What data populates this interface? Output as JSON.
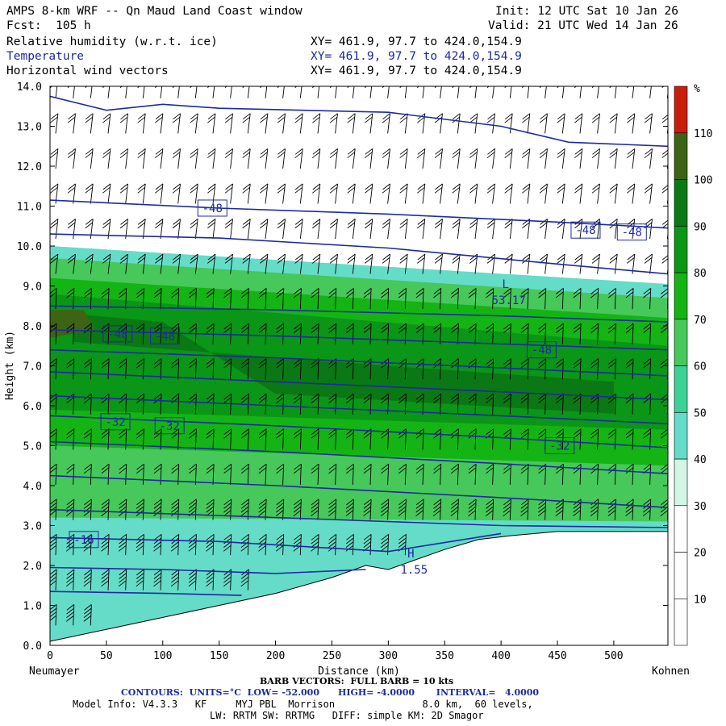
{
  "header": {
    "title": "AMPS 8-km WRF -- Qn Maud Land Coast window",
    "fcst": "Fcst:  105 h",
    "init": "Init: 12 UTC Sat 10 Jan 26",
    "valid": "Valid: 21 UTC Wed 14 Jan 26",
    "fields": [
      {
        "name": "Relative humidity (w.r.t. ice)",
        "xy": "XY= 461.9, 97.7 to 424.0,154.9",
        "color": "#000000"
      },
      {
        "name": "Temperature",
        "xy": "XY= 461.9, 97.7 to 424.0,154.9",
        "color": "#1e2a9e"
      },
      {
        "name": "Horizontal wind vectors",
        "xy": "XY= 461.9, 97.7 to 424.0,154.9",
        "color": "#000000"
      }
    ]
  },
  "axes": {
    "xlabel": "Distance (km)",
    "ylabel": "Height (km)",
    "left_endpoint": "Neumayer",
    "right_endpoint": "Kohnen"
  },
  "colorbar": {
    "unit": "%",
    "labels": [
      "10",
      "20",
      "30",
      "40",
      "50",
      "60",
      "70",
      "80",
      "90",
      "100",
      "110"
    ],
    "colors": [
      "#ffffff",
      "#ffffff",
      "#ffffff",
      "#d2f5e6",
      "#64dcc8",
      "#3cd296",
      "#46c85a",
      "#14b414",
      "#0a9616",
      "#0a7814",
      "#3c6414",
      "#c81e0a"
    ]
  },
  "footer": {
    "barb": "BARB VECTORS:  FULL BARB = 10 kts",
    "contours": "CONTOURS:  UNITS=°C  LOW= -52.000      HIGH= -4.0000       INTERVAL=   4.0000",
    "model_info": "Model Info: V4.3.3   KF     MYJ PBL  Morrison               8.0 km,  60 levels,",
    "model_info2": "LW: RRTM SW: RRTMG   DIFF: simple KM: 2D Smagor"
  },
  "chart_data": {
    "type": "cross-section",
    "title": "Relative humidity (w.r.t. ice), Temperature, Horizontal wind vectors",
    "xlabel": "Distance (km)",
    "ylabel": "Height (km)",
    "xlim": [
      0,
      548
    ],
    "ylim": [
      0,
      14
    ],
    "x_ticks": [
      0,
      50,
      100,
      150,
      200,
      250,
      300,
      350,
      400,
      450,
      500
    ],
    "y_ticks": [
      0,
      1,
      2,
      3,
      4,
      5,
      6,
      7,
      8,
      9,
      10,
      11,
      12,
      13,
      14
    ],
    "y_tick_labels": [
      "0.0",
      "1.0",
      "2.0",
      "3.0",
      "4.0",
      "5.0",
      "6.0",
      "7.0",
      "8.0",
      "9.0",
      "10.0",
      "11.0",
      "12.0",
      "13.0",
      "14.0"
    ],
    "terrain": [
      [
        0,
        0.1
      ],
      [
        50,
        0.4
      ],
      [
        100,
        0.7
      ],
      [
        150,
        1.0
      ],
      [
        200,
        1.3
      ],
      [
        250,
        1.7
      ],
      [
        280,
        2.0
      ],
      [
        300,
        1.9
      ],
      [
        320,
        2.1
      ],
      [
        350,
        2.4
      ],
      [
        380,
        2.65
      ],
      [
        410,
        2.75
      ],
      [
        450,
        2.85
      ],
      [
        548,
        2.85
      ]
    ],
    "temperature_isotherms": [
      {
        "points": [
          [
            0,
            13.75
          ],
          [
            50,
            13.4
          ],
          [
            100,
            13.55
          ],
          [
            150,
            13.45
          ],
          [
            300,
            13.35
          ],
          [
            400,
            13.0
          ],
          [
            460,
            12.6
          ],
          [
            548,
            12.5
          ]
        ]
      },
      {
        "points": [
          [
            0,
            11.15
          ],
          [
            150,
            10.95
          ],
          [
            300,
            10.8
          ],
          [
            450,
            10.6
          ],
          [
            548,
            10.45
          ]
        ]
      },
      {
        "points": [
          [
            0,
            10.3
          ],
          [
            150,
            10.2
          ],
          [
            300,
            9.95
          ],
          [
            450,
            9.55
          ],
          [
            548,
            9.3
          ]
        ]
      },
      {
        "points": [
          [
            0,
            8.5
          ],
          [
            200,
            8.4
          ],
          [
            400,
            8.25
          ],
          [
            548,
            8.1
          ]
        ]
      },
      {
        "points": [
          [
            0,
            7.9
          ],
          [
            200,
            7.75
          ],
          [
            400,
            7.55
          ],
          [
            548,
            7.4
          ]
        ]
      },
      {
        "points": [
          [
            0,
            7.4
          ],
          [
            200,
            7.2
          ],
          [
            400,
            6.95
          ],
          [
            548,
            6.75
          ]
        ]
      },
      {
        "points": [
          [
            0,
            6.85
          ],
          [
            200,
            6.6
          ],
          [
            400,
            6.35
          ],
          [
            548,
            6.15
          ]
        ]
      },
      {
        "points": [
          [
            0,
            6.25
          ],
          [
            200,
            6.0
          ],
          [
            400,
            5.75
          ],
          [
            548,
            5.55
          ]
        ]
      },
      {
        "points": [
          [
            0,
            5.75
          ],
          [
            200,
            5.5
          ],
          [
            400,
            5.2
          ],
          [
            548,
            4.95
          ]
        ]
      },
      {
        "points": [
          [
            0,
            5.1
          ],
          [
            200,
            4.85
          ],
          [
            400,
            4.55
          ],
          [
            548,
            4.3
          ]
        ]
      },
      {
        "points": [
          [
            0,
            4.25
          ],
          [
            200,
            4.0
          ],
          [
            400,
            3.7
          ],
          [
            548,
            3.45
          ]
        ]
      },
      {
        "points": [
          [
            0,
            3.4
          ],
          [
            200,
            3.2
          ],
          [
            400,
            3.0
          ],
          [
            548,
            2.95
          ]
        ]
      },
      {
        "points": [
          [
            0,
            2.7
          ],
          [
            150,
            2.6
          ],
          [
            300,
            2.35
          ],
          [
            400,
            2.8
          ]
        ]
      },
      {
        "points": [
          [
            0,
            1.95
          ],
          [
            100,
            1.9
          ],
          [
            200,
            1.8
          ],
          [
            280,
            1.9
          ]
        ]
      },
      {
        "points": [
          [
            0,
            1.35
          ],
          [
            100,
            1.3
          ],
          [
            170,
            1.25
          ]
        ]
      }
    ],
    "isotherm_labels": [
      {
        "text": "-48",
        "x": 144,
        "y": 10.95
      },
      {
        "text": "-48",
        "x": 475,
        "y": 10.4
      },
      {
        "text": "-48",
        "x": 516,
        "y": 10.35
      },
      {
        "text": "-48",
        "x": 60,
        "y": 7.8
      },
      {
        "text": "-48",
        "x": 102,
        "y": 7.75
      },
      {
        "text": "-48",
        "x": 436,
        "y": 7.4
      },
      {
        "text": "-32",
        "x": 58,
        "y": 5.6
      },
      {
        "text": "-32",
        "x": 106,
        "y": 5.5
      },
      {
        "text": "-32",
        "x": 452,
        "y": 5.0
      },
      {
        "text": "-16",
        "x": 30,
        "y": 2.65
      }
    ],
    "extrema": [
      {
        "kind": "L",
        "x": 404,
        "y": 8.95,
        "value": "53.17"
      },
      {
        "kind": "H",
        "x": 320,
        "y": 2.2,
        "value": "1.55"
      }
    ],
    "rh_contour_levels": [
      10,
      20,
      30,
      40,
      50,
      60,
      70,
      80,
      90,
      100,
      110
    ],
    "rh_regions": [
      {
        "level": 40,
        "bounds": [
          [
            0,
            10.0
          ],
          [
            548,
            9.05
          ],
          [
            548,
            0
          ],
          [
            0,
            0
          ]
        ]
      },
      {
        "level": 60,
        "bounds": [
          [
            0,
            9.7
          ],
          [
            548,
            8.7
          ],
          [
            548,
            3.1
          ],
          [
            0,
            3.2
          ]
        ]
      },
      {
        "level": 70,
        "bounds": [
          [
            0,
            9.2
          ],
          [
            548,
            8.2
          ],
          [
            548,
            4.5
          ],
          [
            0,
            5.0
          ]
        ]
      },
      {
        "level": 80,
        "bounds": [
          [
            0,
            8.8
          ],
          [
            548,
            7.5
          ],
          [
            548,
            5.4
          ],
          [
            0,
            5.9
          ]
        ]
      },
      {
        "level": 90,
        "bounds": [
          [
            20,
            8.3
          ],
          [
            100,
            8.1
          ],
          [
            200,
            6.3
          ],
          [
            500,
            5.8
          ],
          [
            500,
            6.6
          ],
          [
            300,
            7.0
          ],
          [
            20,
            7.6
          ]
        ]
      },
      {
        "level": 100,
        "bounds": [
          [
            0,
            8.4
          ],
          [
            30,
            8.4
          ],
          [
            40,
            7.9
          ],
          [
            0,
            7.7
          ]
        ]
      }
    ],
    "wind_barbs": "Westerly-to-easterly barbs at ~15 km spacing across all levels; strongest near the surface ridge."
  }
}
